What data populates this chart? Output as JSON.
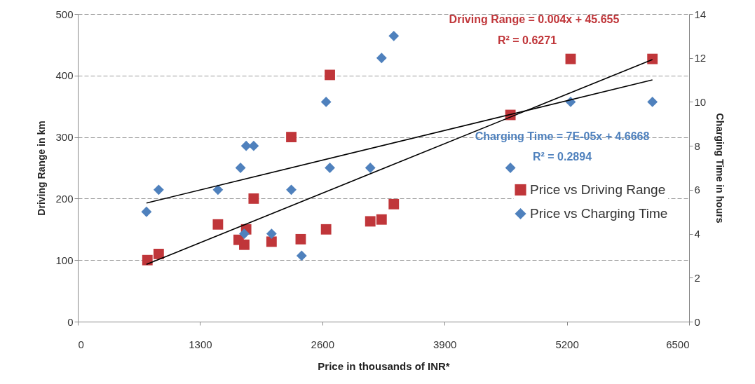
{
  "chart_data": {
    "type": "scatter",
    "xlabel": "Price in thousands of INR*",
    "ylabel": "Driving Range in km",
    "y2label": "Charging Time in hours",
    "xlim": [
      0,
      6500
    ],
    "xticks": [
      0,
      1300,
      2600,
      3900,
      5200,
      6500
    ],
    "ylim": [
      0,
      500
    ],
    "yticks": [
      0,
      100,
      200,
      300,
      400,
      500
    ],
    "y2lim": [
      0,
      14
    ],
    "y2ticks": [
      0,
      2,
      4,
      6,
      8,
      10,
      12,
      14
    ],
    "grid": "y",
    "legend": "right",
    "series": [
      {
        "name": "Price vs Driving Range",
        "color": "#c0363a",
        "marker": "square",
        "x": [
          740,
          860,
          1490,
          1710,
          1770,
          1790,
          1870,
          2060,
          2270,
          2370,
          2640,
          2680,
          3110,
          3230,
          3360,
          4600,
          5240,
          6110
        ],
        "values": [
          100,
          110,
          158,
          133,
          125,
          150,
          200,
          130,
          300,
          134,
          150,
          401,
          163,
          166,
          191,
          336,
          427,
          427
        ]
      },
      {
        "type": "line",
        "color": "#000000",
        "marker": "none",
        "x": [
          730,
          6110
        ],
        "values": [
          93,
          426
        ]
      },
      {
        "name": "Price vs Charging Time",
        "color": "#4f81bd",
        "marker": "diamond",
        "axis": "y2",
        "x": [
          730,
          860,
          1490,
          1730,
          1790,
          1870,
          1770,
          2060,
          2270,
          2380,
          2640,
          2680,
          3110,
          3230,
          3360,
          4600,
          5240,
          6110
        ],
        "values": [
          5,
          6,
          6,
          7,
          8,
          8,
          4,
          4,
          6,
          3,
          10,
          7,
          7,
          12,
          13,
          7,
          10,
          10
        ]
      },
      {
        "type": "line",
        "color": "#000000",
        "marker": "none",
        "axis": "y2",
        "x": [
          730,
          6110
        ],
        "values": [
          5.4,
          11.0
        ]
      }
    ],
    "annotations": [
      "Driving Range = 0.004x + 45.655",
      "R² = 0.6271",
      "Charging Time = 7E-05x + 4.6668",
      "R² = 0.2894"
    ]
  }
}
